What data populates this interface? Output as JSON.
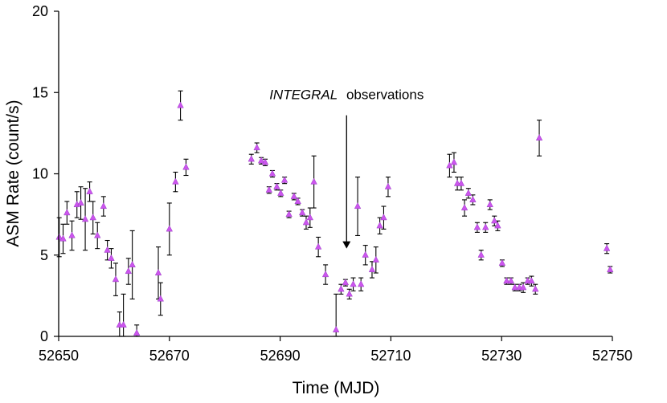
{
  "chart_data": {
    "type": "scatter",
    "title": "",
    "xlabel": "Time (MJD)",
    "ylabel": "ASM Rate (count/s)",
    "xlim": [
      52650,
      52750
    ],
    "ylim": [
      0,
      20
    ],
    "x_ticks": [
      "52650",
      "52670",
      "52690",
      "52710",
      "52730",
      "52750"
    ],
    "y_ticks": [
      "0",
      "5",
      "10",
      "15",
      "20"
    ],
    "marker_color": "#cc55ee",
    "errorbar_color": "#000000",
    "annotation": {
      "italic": "INTEGRAL",
      "rest": "observations",
      "x": 52702,
      "y_from": 13.6,
      "y_to": 5.4
    },
    "series": [
      {
        "name": "ASM",
        "points": [
          [
            52650.1,
            6.1,
            1.2
          ],
          [
            52650.8,
            6.0,
            0.9
          ],
          [
            52651.5,
            7.6,
            0.7
          ],
          [
            52652.4,
            6.2,
            0.9
          ],
          [
            52653.3,
            8.1,
            0.8
          ],
          [
            52654.0,
            8.2,
            1.0
          ],
          [
            52654.8,
            7.2,
            1.9
          ],
          [
            52655.6,
            8.9,
            0.6
          ],
          [
            52656.2,
            7.3,
            1.0
          ],
          [
            52657.0,
            6.2,
            0.8
          ],
          [
            52658.1,
            8.0,
            0.6
          ],
          [
            52658.8,
            5.3,
            0.6
          ],
          [
            52659.5,
            4.8,
            0.6
          ],
          [
            52660.3,
            3.5,
            1.0
          ],
          [
            52661.0,
            0.7,
            0.8
          ],
          [
            52661.7,
            0.7,
            1.9
          ],
          [
            52662.6,
            4.0,
            0.8
          ],
          [
            52663.3,
            4.4,
            2.1
          ],
          [
            52664.1,
            0.2,
            0.5
          ],
          [
            52668.0,
            3.9,
            1.6
          ],
          [
            52668.4,
            2.3,
            1.0
          ],
          [
            52670.0,
            6.6,
            1.6
          ],
          [
            52671.1,
            9.5,
            0.6
          ],
          [
            52672.0,
            14.2,
            0.9
          ],
          [
            52673.0,
            10.4,
            0.5
          ],
          [
            52684.8,
            10.9,
            0.3
          ],
          [
            52685.8,
            11.6,
            0.3
          ],
          [
            52686.6,
            10.8,
            0.2
          ],
          [
            52687.3,
            10.7,
            0.2
          ],
          [
            52688.0,
            9.0,
            0.2
          ],
          [
            52688.6,
            10.0,
            0.2
          ],
          [
            52689.4,
            9.2,
            0.2
          ],
          [
            52690.1,
            8.8,
            0.2
          ],
          [
            52690.8,
            9.6,
            0.2
          ],
          [
            52691.6,
            7.5,
            0.2
          ],
          [
            52692.5,
            8.6,
            0.2
          ],
          [
            52693.2,
            8.3,
            0.2
          ],
          [
            52694.0,
            7.6,
            0.2
          ],
          [
            52694.7,
            7.0,
            0.4
          ],
          [
            52695.4,
            7.3,
            0.6
          ],
          [
            52696.1,
            9.5,
            1.6
          ],
          [
            52696.9,
            5.5,
            0.6
          ],
          [
            52698.2,
            3.8,
            0.6
          ],
          [
            52700.1,
            0.4,
            2.2
          ],
          [
            52701.0,
            2.9,
            0.3
          ],
          [
            52701.8,
            3.3,
            0.2
          ],
          [
            52702.5,
            2.6,
            0.3
          ],
          [
            52703.2,
            3.2,
            0.4
          ],
          [
            52704.0,
            8.0,
            1.8
          ],
          [
            52704.6,
            3.2,
            0.4
          ],
          [
            52705.4,
            5.0,
            0.6
          ],
          [
            52706.6,
            4.1,
            0.5
          ],
          [
            52707.3,
            4.7,
            0.8
          ],
          [
            52708.0,
            6.8,
            0.5
          ],
          [
            52708.7,
            7.3,
            0.7
          ],
          [
            52709.5,
            9.2,
            0.6
          ],
          [
            52720.6,
            10.5,
            0.7
          ],
          [
            52721.4,
            10.7,
            0.6
          ],
          [
            52722.0,
            9.4,
            0.4
          ],
          [
            52722.7,
            9.4,
            0.4
          ],
          [
            52723.3,
            7.9,
            0.5
          ],
          [
            52724.0,
            8.8,
            0.3
          ],
          [
            52724.8,
            8.4,
            0.3
          ],
          [
            52725.6,
            6.7,
            0.3
          ],
          [
            52726.3,
            5.0,
            0.3
          ],
          [
            52727.1,
            6.7,
            0.3
          ],
          [
            52727.9,
            8.1,
            0.3
          ],
          [
            52728.7,
            7.1,
            0.3
          ],
          [
            52729.3,
            6.8,
            0.3
          ],
          [
            52730.1,
            4.5,
            0.2
          ],
          [
            52730.9,
            3.4,
            0.2
          ],
          [
            52731.7,
            3.4,
            0.2
          ],
          [
            52732.4,
            3.0,
            0.2
          ],
          [
            52733.2,
            3.0,
            0.2
          ],
          [
            52733.9,
            3.0,
            0.3
          ],
          [
            52734.7,
            3.4,
            0.2
          ],
          [
            52735.4,
            3.4,
            0.3
          ],
          [
            52736.1,
            2.9,
            0.3
          ],
          [
            52736.8,
            12.2,
            1.1
          ],
          [
            52749.0,
            5.4,
            0.3
          ],
          [
            52749.6,
            4.1,
            0.2
          ]
        ]
      }
    ]
  }
}
